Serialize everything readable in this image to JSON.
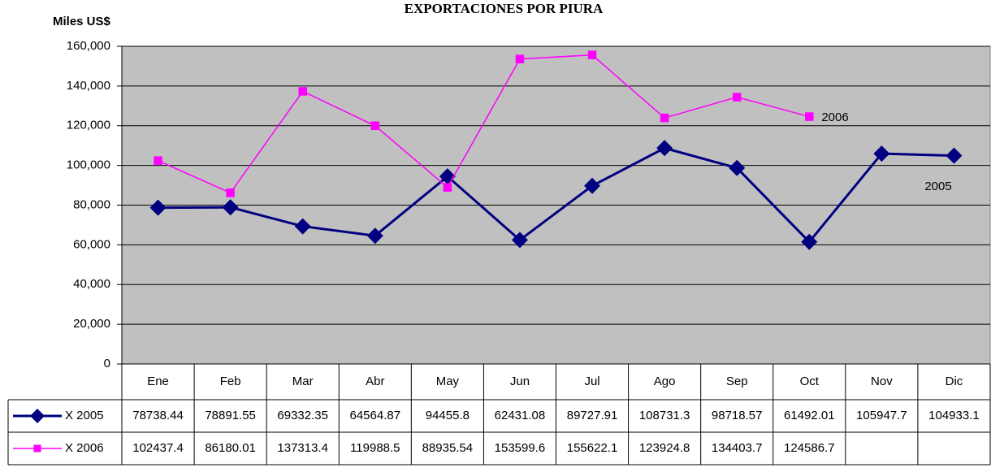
{
  "chart_data": {
    "type": "line",
    "title": "EXPORTACIONES POR PIURA",
    "y_label": "Miles US$",
    "categories": [
      "Ene",
      "Feb",
      "Mar",
      "Abr",
      "May",
      "Jun",
      "Jul",
      "Ago",
      "Sep",
      "Oct",
      "Nov",
      "Dic"
    ],
    "series": [
      {
        "name": "X 2005",
        "color": "#000080",
        "marker": "diamond",
        "values": [
          78738.44,
          78891.55,
          69332.35,
          64564.87,
          94455.8,
          62431.08,
          89727.91,
          108731.3,
          98718.57,
          61492.01,
          105947.7,
          104933.1
        ]
      },
      {
        "name": "X 2006",
        "color": "#ff00ff",
        "marker": "square",
        "values": [
          102437.4,
          86180.01,
          137313.4,
          119988.5,
          88935.54,
          153599.6,
          155622.1,
          123924.8,
          134403.7,
          124586.7,
          null,
          null
        ]
      }
    ],
    "annotations": [
      "2005",
      "2006"
    ],
    "ylim": [
      0,
      160000
    ],
    "yticks": [
      0,
      {
        "value": 20000,
        "label": "20,000"
      },
      {
        "value": 40000,
        "label": "40,000"
      },
      {
        "value": 60000,
        "label": "60,000"
      },
      {
        "value": 80000,
        "label": "80,000"
      },
      {
        "value": 100000,
        "label": "100,000"
      },
      {
        "value": 120000,
        "label": "120,000"
      },
      {
        "value": 140000,
        "label": "140,000"
      },
      {
        "value": 160000,
        "label": "160,000"
      }
    ],
    "grid": true,
    "plot_background": "#c0c0c0"
  }
}
